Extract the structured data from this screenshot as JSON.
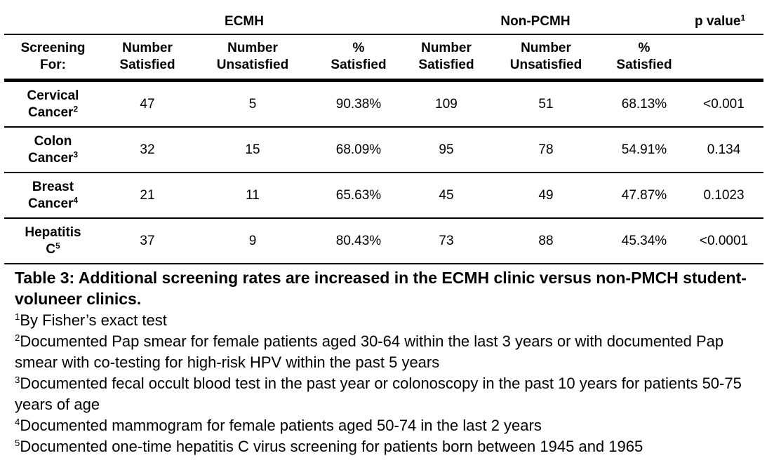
{
  "groups": {
    "ecmh": "ECMH",
    "non_pcmh": "Non-PCMH",
    "p_value": "p value",
    "p_value_sup": "1"
  },
  "columns": [
    "Screening For:",
    "Number Satisfied",
    "Number Unsatisfied",
    "% Satisfied",
    "Number Satisfied",
    "Number Unsatisfied",
    "% Satisfied",
    ""
  ],
  "rows": [
    {
      "label_line1": "Cervical",
      "label_line2": "Cancer",
      "sup": "2",
      "cells": [
        "47",
        "5",
        "90.38%",
        "109",
        "51",
        "68.13%",
        "<0.001"
      ]
    },
    {
      "label_line1": "Colon",
      "label_line2": "Cancer",
      "sup": "3",
      "cells": [
        "32",
        "15",
        "68.09%",
        "95",
        "78",
        "54.91%",
        "0.134"
      ]
    },
    {
      "label_line1": "Breast",
      "label_line2": "Cancer",
      "sup": "4",
      "cells": [
        "21",
        "11",
        "65.63%",
        "45",
        "49",
        "47.87%",
        "0.1023"
      ]
    },
    {
      "label_line1": "Hepatitis",
      "label_line2": "C",
      "sup": "5",
      "cells": [
        "37",
        "9",
        "80.43%",
        "73",
        "88",
        "45.34%",
        "<0.0001"
      ]
    }
  ],
  "caption": "Table 3: Additional screening rates are increased in the ECMH clinic versus non-PMCH student-voluneer clinics.",
  "footnotes": [
    {
      "mark": "1",
      "text": "By Fisher’s exact test"
    },
    {
      "mark": "2",
      "text": "Documented Pap smear for female patients aged 30-64 within the last 3 years or with documented Pap smear with co-testing for high-risk HPV within the past 5 years"
    },
    {
      "mark": "3",
      "text": "Documented fecal occult blood test in the past year or colonoscopy in the past 10 years for patients 50-75 years of age"
    },
    {
      "mark": "4",
      "text": "Documented mammogram for female patients aged 50-74 in the last 2 years"
    },
    {
      "mark": "5",
      "text": "Documented one-time hepatitis C virus screening for patients born between 1945 and 1965"
    }
  ]
}
